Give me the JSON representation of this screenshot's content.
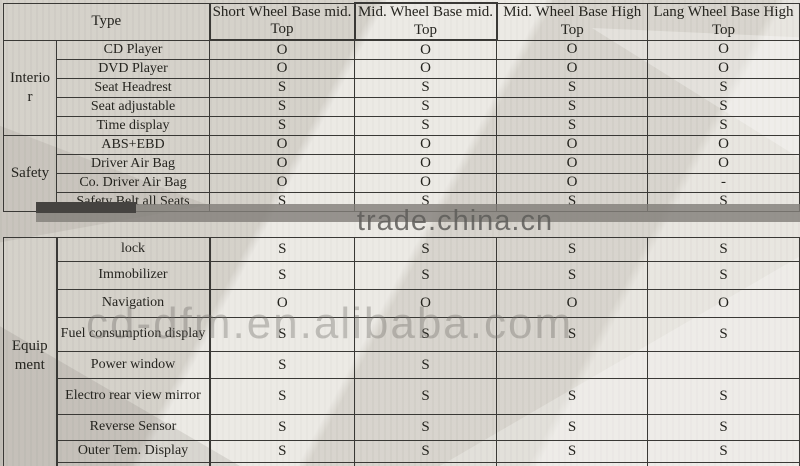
{
  "watermarks": {
    "primary": "trade.china.cn",
    "secondary": "cd-dfm.en.alibaba.com"
  },
  "table": {
    "type_header": "Type",
    "columns": [
      {
        "line1": "Short Wheel Base mid.",
        "line2": "Top"
      },
      {
        "line1": "Mid. Wheel Base mid.",
        "line2": "Top"
      },
      {
        "line1": "Mid. Wheel Base High",
        "line2": "Top"
      },
      {
        "line1": "Lang Wheel Base High",
        "line2": "Top"
      }
    ],
    "groups": [
      {
        "label": "Interior",
        "rows": [
          {
            "feature": "CD Player",
            "values": [
              "O",
              "O",
              "O",
              "O"
            ]
          },
          {
            "feature": "DVD Player",
            "values": [
              "O",
              "O",
              "O",
              "O"
            ]
          },
          {
            "feature": "Seat Headrest",
            "values": [
              "S",
              "S",
              "S",
              "S"
            ]
          },
          {
            "feature": "Seat adjustable",
            "values": [
              "S",
              "S",
              "S",
              "S"
            ]
          },
          {
            "feature": "Time display",
            "values": [
              "S",
              "S",
              "S",
              "S"
            ]
          }
        ]
      },
      {
        "label": "Safety",
        "rows": [
          {
            "feature": "ABS+EBD",
            "values": [
              "O",
              "O",
              "O",
              "O"
            ]
          },
          {
            "feature": "Driver Air Bag",
            "values": [
              "O",
              "O",
              "O",
              "O"
            ]
          },
          {
            "feature": "Co. Driver Air Bag",
            "values": [
              "O",
              "O",
              "O",
              "-"
            ]
          },
          {
            "feature": "Safety Belt all Seats",
            "values": [
              "S",
              "S",
              "S",
              "S"
            ]
          }
        ]
      },
      {
        "label": "Equipment",
        "rows": [
          {
            "feature": "lock",
            "values": [
              "S",
              "S",
              "S",
              "S"
            ]
          },
          {
            "feature": "Immobilizer",
            "values": [
              "S",
              "S",
              "S",
              "S"
            ]
          },
          {
            "feature": "Navigation",
            "values": [
              "O",
              "O",
              "O",
              "O"
            ]
          },
          {
            "feature": "Fuel consumption display",
            "values": [
              "S",
              "S",
              "S",
              "S"
            ]
          },
          {
            "feature": "Power window",
            "values": [
              "S",
              "S",
              "",
              ""
            ]
          },
          {
            "feature": "Electro rear view mirror",
            "values": [
              "S",
              "S",
              "S",
              "S"
            ]
          },
          {
            "feature": "Reverse Sensor",
            "values": [
              "S",
              "S",
              "S",
              "S"
            ]
          },
          {
            "feature": "Outer Tem. Display",
            "values": [
              "S",
              "S",
              "S",
              "S"
            ]
          }
        ]
      }
    ]
  },
  "colors": {
    "paper": "#e2dfd8",
    "grid_line": "#3a3936",
    "text": "#25241f",
    "watermark_band": "#8e8c88",
    "watermark_text": "#5e5d5a"
  }
}
